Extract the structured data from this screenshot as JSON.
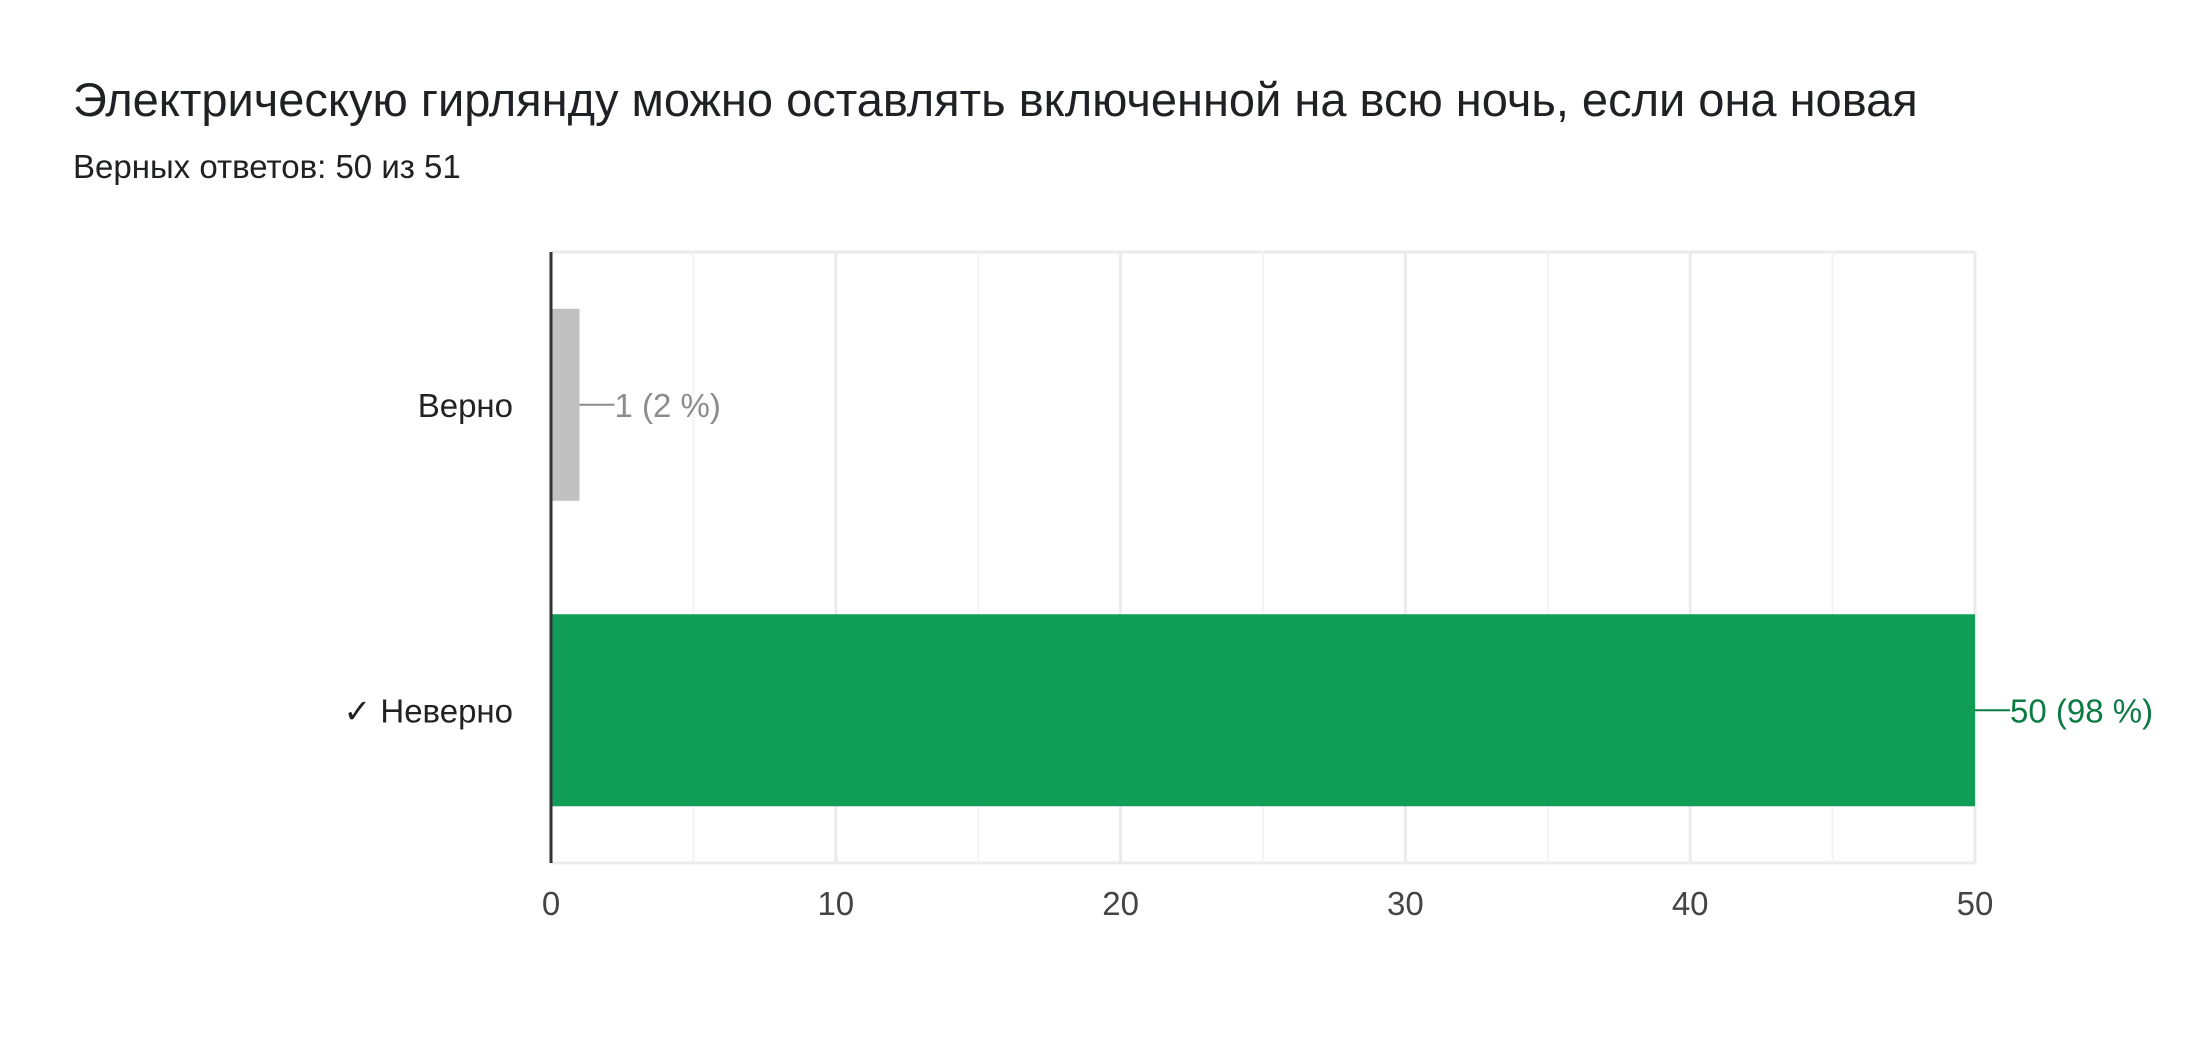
{
  "header": {
    "title": "Электрическую гирлянду можно оставлять включенной на всю ночь, если она новая",
    "subtitle": "Верных ответов: 50 из 51"
  },
  "chart_data": {
    "type": "bar",
    "orientation": "horizontal",
    "categories": [
      "Верно",
      "✓ Неверно"
    ],
    "values": [
      1,
      50
    ],
    "data_labels": [
      "1 (2 %)",
      "50 (98 %)"
    ],
    "colors": [
      "#c0c0c0",
      "#0f9d58"
    ],
    "label_colors": [
      "#8c8c8c",
      "#0b7a43"
    ],
    "xlim": [
      0,
      50
    ],
    "xticks": [
      0,
      10,
      20,
      30,
      40,
      50
    ],
    "grid": true
  }
}
